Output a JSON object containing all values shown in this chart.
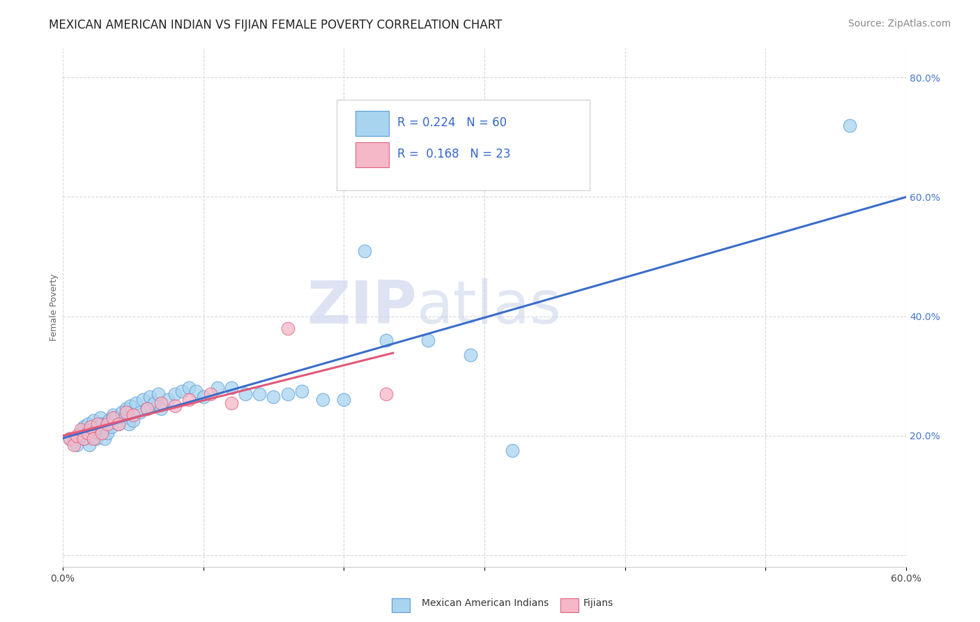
{
  "title": "MEXICAN AMERICAN INDIAN VS FIJIAN FEMALE POVERTY CORRELATION CHART",
  "source": "Source: ZipAtlas.com",
  "ylabel": "Female Poverty",
  "xlim": [
    0.0,
    0.6
  ],
  "ylim": [
    -0.02,
    0.85
  ],
  "blue_color": "#A8D4F0",
  "blue_edge": "#5B9BD5",
  "pink_color": "#F4B8C8",
  "pink_edge": "#E06080",
  "line_blue": "#3A6DC9",
  "line_pink": "#E05878",
  "watermark_zip": "ZIP",
  "watermark_atlas": "atlas",
  "blue_scatter_x": [
    0.005,
    0.008,
    0.01,
    0.012,
    0.013,
    0.015,
    0.016,
    0.018,
    0.019,
    0.02,
    0.021,
    0.022,
    0.024,
    0.025,
    0.026,
    0.027,
    0.028,
    0.03,
    0.031,
    0.032,
    0.033,
    0.035,
    0.036,
    0.038,
    0.04,
    0.042,
    0.044,
    0.045,
    0.047,
    0.048,
    0.05,
    0.052,
    0.055,
    0.057,
    0.06,
    0.062,
    0.065,
    0.068,
    0.07,
    0.075,
    0.08,
    0.085,
    0.09,
    0.095,
    0.1,
    0.11,
    0.12,
    0.13,
    0.14,
    0.15,
    0.16,
    0.17,
    0.185,
    0.2,
    0.215,
    0.23,
    0.26,
    0.29,
    0.32,
    0.56
  ],
  "blue_scatter_y": [
    0.195,
    0.19,
    0.185,
    0.2,
    0.205,
    0.215,
    0.195,
    0.22,
    0.185,
    0.21,
    0.2,
    0.225,
    0.195,
    0.215,
    0.205,
    0.23,
    0.22,
    0.195,
    0.215,
    0.205,
    0.225,
    0.215,
    0.235,
    0.23,
    0.22,
    0.24,
    0.23,
    0.245,
    0.22,
    0.25,
    0.225,
    0.255,
    0.24,
    0.26,
    0.245,
    0.265,
    0.255,
    0.27,
    0.245,
    0.26,
    0.27,
    0.275,
    0.28,
    0.275,
    0.265,
    0.28,
    0.28,
    0.27,
    0.27,
    0.265,
    0.27,
    0.275,
    0.26,
    0.26,
    0.51,
    0.36,
    0.36,
    0.335,
    0.175,
    0.72
  ],
  "pink_scatter_x": [
    0.005,
    0.008,
    0.01,
    0.013,
    0.015,
    0.018,
    0.02,
    0.022,
    0.025,
    0.028,
    0.032,
    0.036,
    0.04,
    0.045,
    0.05,
    0.06,
    0.07,
    0.08,
    0.09,
    0.105,
    0.12,
    0.16,
    0.23
  ],
  "pink_scatter_y": [
    0.195,
    0.185,
    0.2,
    0.21,
    0.195,
    0.205,
    0.215,
    0.195,
    0.22,
    0.205,
    0.22,
    0.23,
    0.22,
    0.24,
    0.235,
    0.245,
    0.255,
    0.25,
    0.26,
    0.27,
    0.255,
    0.38,
    0.27
  ],
  "title_fontsize": 12,
  "tick_fontsize": 10,
  "source_fontsize": 10
}
